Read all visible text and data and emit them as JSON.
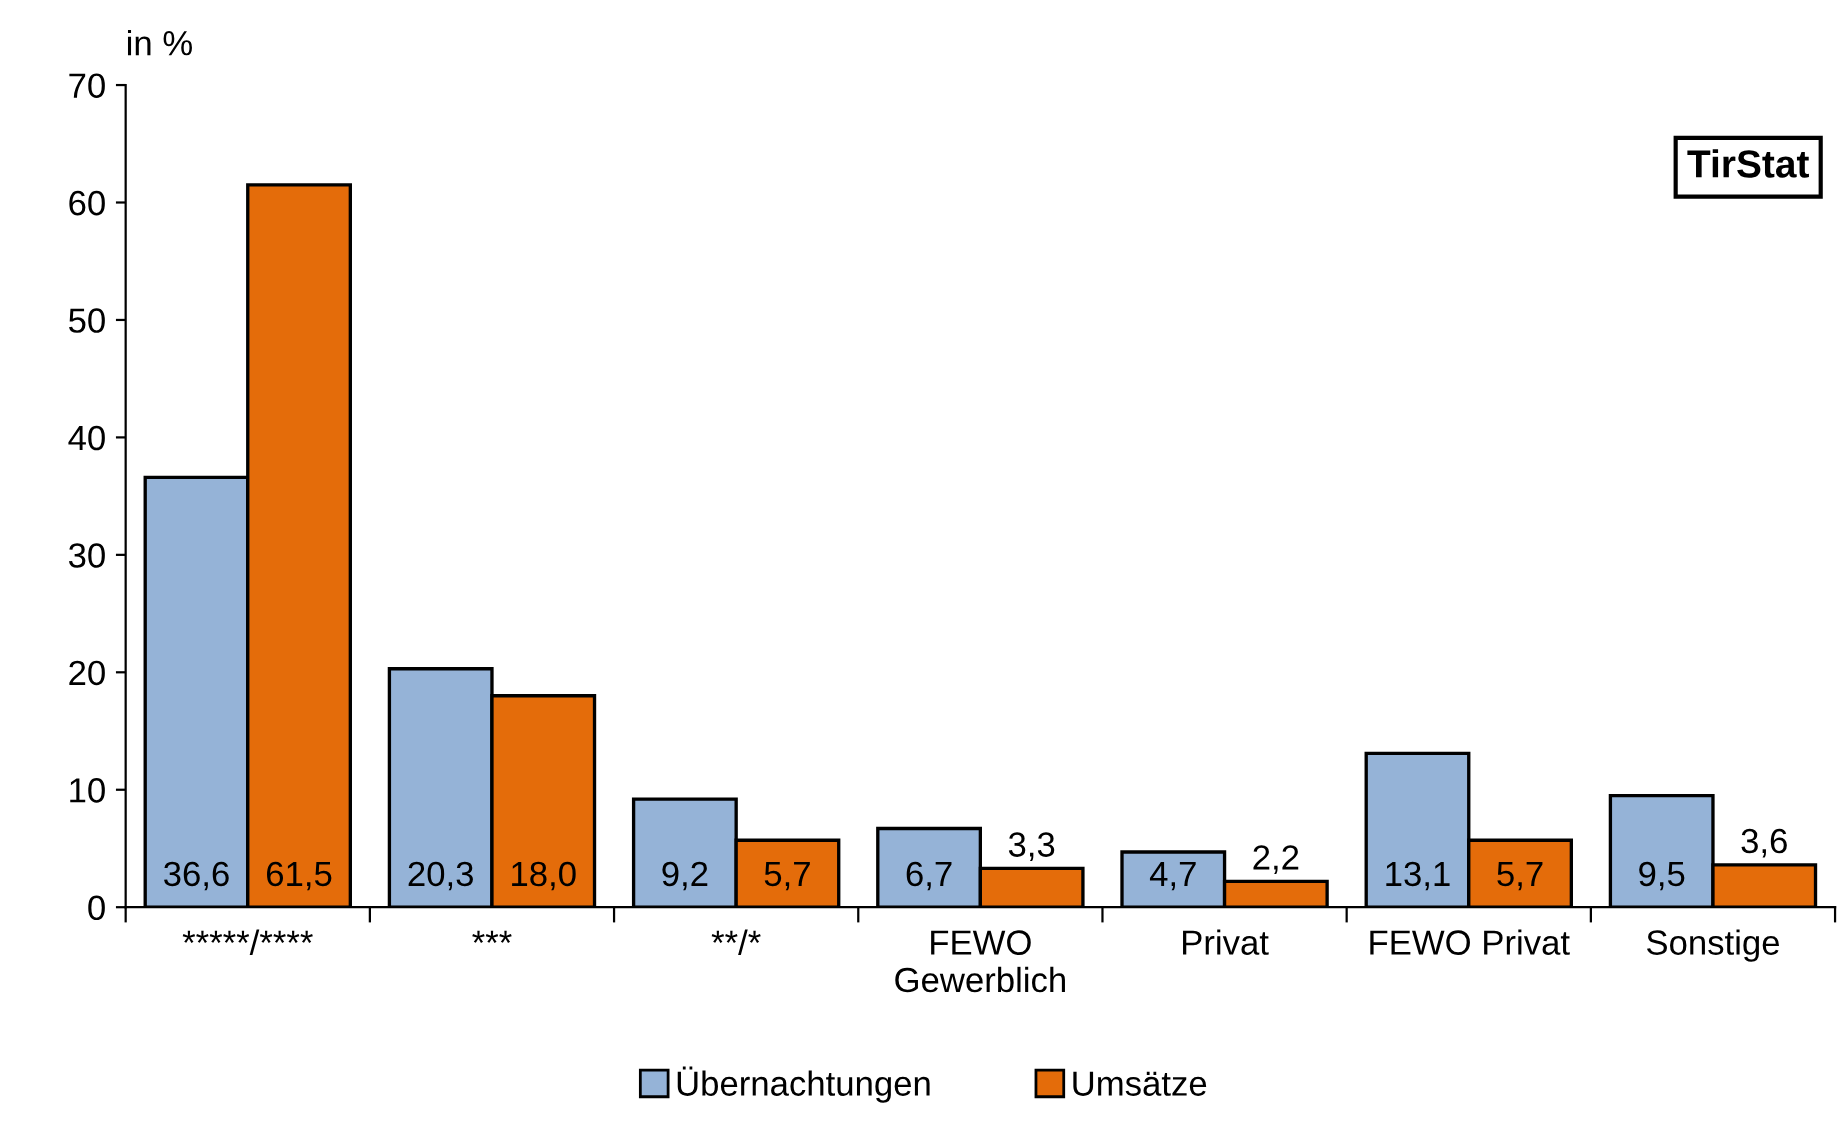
{
  "chart_data": {
    "type": "bar",
    "ylabel": "in %",
    "categories": [
      "*****/****",
      "***",
      "**/*",
      "FEWO\nGewerblich",
      "Privat",
      "FEWO Privat",
      "Sonstige"
    ],
    "series": [
      {
        "name": "Übernachtungen",
        "color": "#95b3d7",
        "values": [
          36.6,
          20.3,
          9.2,
          6.7,
          4.7,
          13.1,
          9.5
        ],
        "value_labels": [
          "36,6",
          "20,3",
          "9,2",
          "6,7",
          "4,7",
          "13,1",
          "9,5"
        ]
      },
      {
        "name": "Umsätze",
        "color": "#e46c0a",
        "values": [
          61.5,
          18.0,
          5.7,
          3.3,
          2.2,
          5.7,
          3.6
        ],
        "value_labels": [
          "61,5",
          "18,0",
          "5,7",
          "3,3",
          "2,2",
          "5,7",
          "3,6"
        ]
      }
    ],
    "ylim": [
      0,
      70
    ],
    "yticks": [
      0,
      10,
      20,
      30,
      40,
      50,
      60,
      70
    ],
    "grid": false,
    "legend": "bottom",
    "annotations": [
      "TirStat"
    ]
  }
}
